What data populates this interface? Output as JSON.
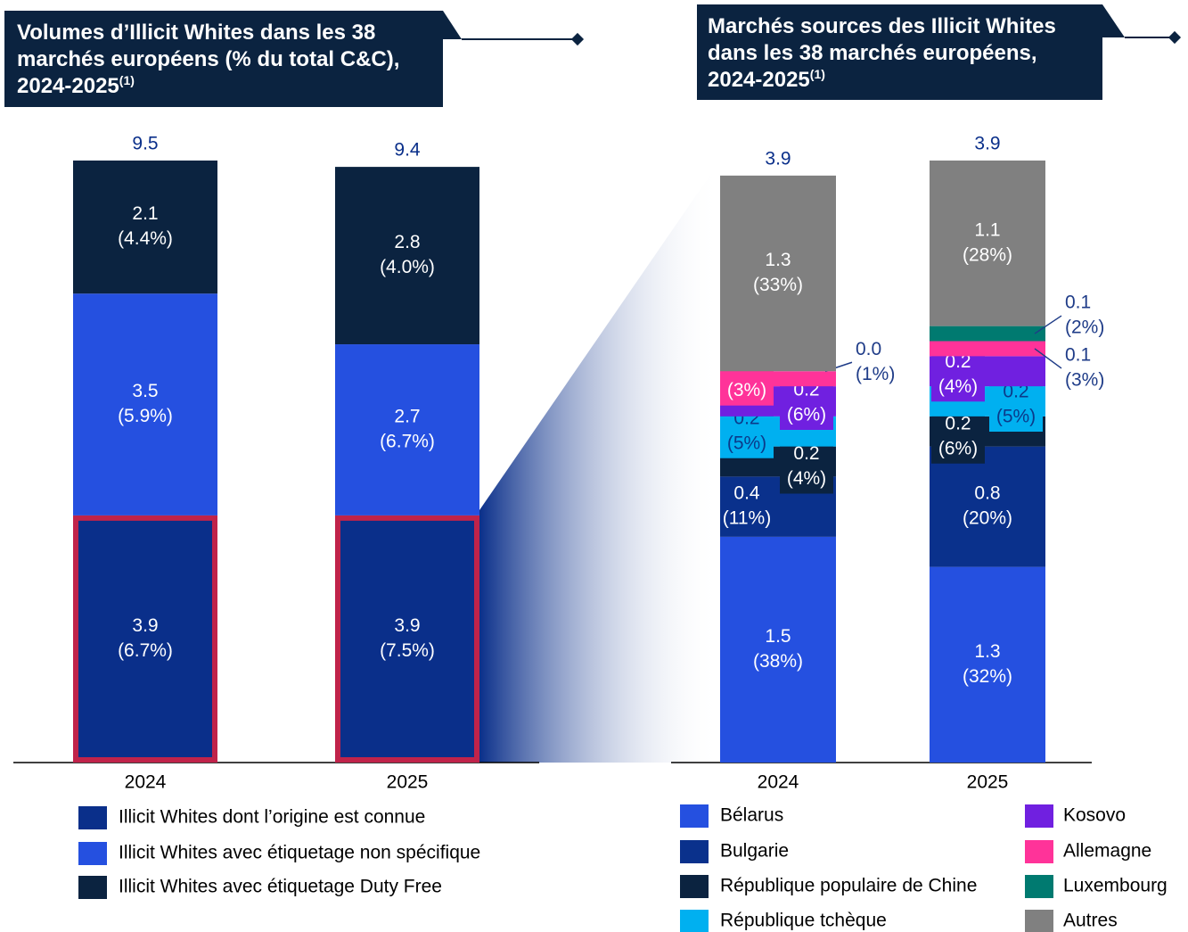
{
  "chart_data": [
    {
      "type": "bar",
      "stacked": true,
      "title": "Volumes d’Illicit Whites dans les 38 marchés européens (% du total C&C), 2024-2025",
      "title_note": "(1)",
      "categories": [
        "2024",
        "2025"
      ],
      "totals": [
        9.5,
        9.4
      ],
      "series": [
        {
          "name": "Illicit Whites dont l’origine est connue",
          "color": "#0a2f8a",
          "values": [
            3.9,
            3.9
          ],
          "percent_labels": [
            "(6.7%)",
            "(7.5%)"
          ]
        },
        {
          "name": "Illicit Whites avec étiquetage non spécifique",
          "color": "#2550e0",
          "values": [
            3.5,
            2.7
          ],
          "percent_labels": [
            "(5.9%)",
            "(6.7%)"
          ]
        },
        {
          "name": "Illicit Whites avec étiquetage Duty Free",
          "color": "#0b2340",
          "values": [
            2.1,
            2.8
          ],
          "percent_labels": [
            "(4.4%)",
            "(4.0%)"
          ]
        }
      ]
    },
    {
      "type": "bar",
      "stacked": true,
      "title": "Marchés sources des Illicit Whites dans les 38 marchés européens, 2024-2025",
      "title_note": "(1)",
      "categories": [
        "2024",
        "2025"
      ],
      "totals": [
        3.9,
        3.9
      ],
      "series": [
        {
          "name": "Bélarus",
          "color": "#2550e0",
          "values": [
            1.5,
            1.3
          ],
          "percent_labels": [
            "(38%)",
            "(32%)"
          ]
        },
        {
          "name": "Bulgarie",
          "color": "#0a318c",
          "values": [
            0.4,
            0.8
          ],
          "percent_labels": [
            "(11%)",
            "(20%)"
          ]
        },
        {
          "name": "République populaire de Chine",
          "color": "#0b2340",
          "values": [
            0.2,
            0.2
          ],
          "percent_labels": [
            "(4%)",
            "(6%)"
          ]
        },
        {
          "name": "République tchèque",
          "color": "#00b0f0",
          "values": [
            0.2,
            0.2
          ],
          "percent_labels": [
            "(5%)",
            "(5%)"
          ]
        },
        {
          "name": "Kosovo",
          "color": "#7020e0",
          "values": [
            0.2,
            0.2
          ],
          "percent_labels": [
            "(6%)",
            "(4%)"
          ]
        },
        {
          "name": "Allemagne",
          "color": "#ff3399",
          "values": [
            0.1,
            0.1
          ],
          "percent_labels": [
            "(3%)",
            "(3%)"
          ]
        },
        {
          "name": "Luxembourg",
          "color": "#007a70",
          "values": [
            0.0,
            0.1
          ],
          "value_labels": [
            "0.0",
            "0.1"
          ],
          "percent_labels": [
            "(1%)",
            "(2%)"
          ]
        },
        {
          "name": "Autres",
          "color": "#808080",
          "values": [
            1.3,
            1.1
          ],
          "percent_labels": [
            "(33%)",
            "(28%)"
          ]
        }
      ]
    }
  ]
}
